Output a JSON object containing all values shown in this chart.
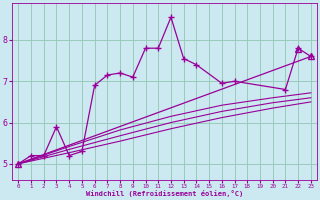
{
  "bg_color": "#cce8f0",
  "line_color": "#990099",
  "grid_color": "#99ccbb",
  "xlim": [
    -0.5,
    23.5
  ],
  "ylim": [
    4.6,
    8.9
  ],
  "xticks": [
    0,
    1,
    2,
    3,
    4,
    5,
    6,
    7,
    8,
    9,
    10,
    11,
    12,
    13,
    14,
    15,
    16,
    17,
    18,
    19,
    20,
    21,
    22,
    23
  ],
  "yticks": [
    5,
    6,
    7,
    8
  ],
  "xlabel": "Windchill (Refroidissement éolien,°C)",
  "series_main": {
    "x": [
      0,
      1,
      2,
      3,
      4,
      5,
      6,
      7,
      8,
      9,
      10,
      11,
      12,
      13,
      14,
      16,
      17,
      21,
      22,
      23
    ],
    "y": [
      5.0,
      5.2,
      5.2,
      5.9,
      5.2,
      5.3,
      6.9,
      7.15,
      7.2,
      7.1,
      7.8,
      7.8,
      8.55,
      7.55,
      7.4,
      6.95,
      7.0,
      6.8,
      7.8,
      7.6
    ]
  },
  "series_linear": {
    "x": [
      0,
      21,
      22,
      23
    ],
    "y": [
      5.0,
      7.77,
      7.77,
      7.6
    ]
  },
  "trend_lines": [
    {
      "x": [
        0,
        4,
        8,
        12,
        16,
        20,
        23
      ],
      "y": [
        5.0,
        5.42,
        5.82,
        6.15,
        6.42,
        6.6,
        6.72
      ]
    },
    {
      "x": [
        0,
        4,
        8,
        12,
        16,
        20,
        23
      ],
      "y": [
        5.0,
        5.35,
        5.68,
        6.0,
        6.27,
        6.48,
        6.6
      ]
    },
    {
      "x": [
        0,
        4,
        8,
        12,
        16,
        20,
        23
      ],
      "y": [
        5.0,
        5.27,
        5.55,
        5.85,
        6.12,
        6.35,
        6.5
      ]
    }
  ]
}
